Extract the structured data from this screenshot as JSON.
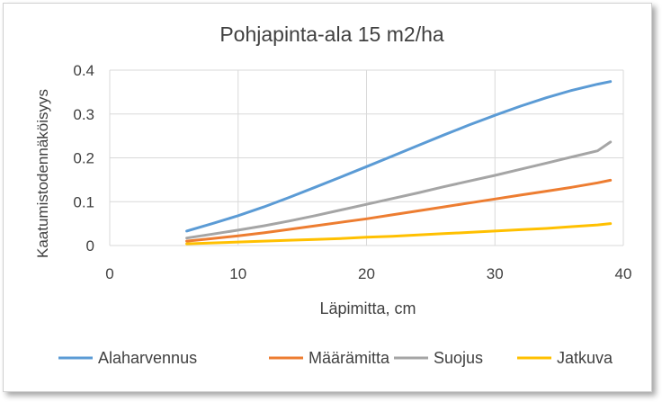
{
  "chart_data": {
    "type": "line",
    "title": "Pohjapinta-ala 15 m2/ha",
    "xlabel": "Läpimitta, cm",
    "ylabel": "Kaatumistodennäköisyys",
    "xlim": [
      0,
      40
    ],
    "ylim": [
      0,
      0.4
    ],
    "xticks": [
      0,
      10,
      20,
      30,
      40
    ],
    "yticks": [
      0,
      0.1,
      0.2,
      0.3,
      0.4
    ],
    "xtick_labels": [
      "0",
      "10",
      "20",
      "30",
      "40"
    ],
    "ytick_labels": [
      "0",
      "0.1",
      "0.2",
      "0.3",
      "0.4"
    ],
    "grid": true,
    "legend_position": "bottom",
    "x": [
      6,
      8,
      10,
      12,
      14,
      16,
      18,
      20,
      22,
      24,
      26,
      28,
      30,
      32,
      34,
      36,
      38,
      39
    ],
    "series": [
      {
        "name": "Alaharvennus",
        "color": "#5b9bd5",
        "values": [
          0.033,
          0.05,
          0.068,
          0.088,
          0.11,
          0.133,
          0.156,
          0.18,
          0.204,
          0.228,
          0.252,
          0.275,
          0.297,
          0.318,
          0.337,
          0.354,
          0.368,
          0.374
        ]
      },
      {
        "name": "Määrämitta",
        "color": "#ed7d31",
        "values": [
          0.01,
          0.016,
          0.022,
          0.029,
          0.037,
          0.045,
          0.053,
          0.061,
          0.07,
          0.079,
          0.088,
          0.097,
          0.106,
          0.115,
          0.124,
          0.133,
          0.143,
          0.149
        ]
      },
      {
        "name": "Suojus",
        "color": "#a5a5a5",
        "values": [
          0.017,
          0.026,
          0.035,
          0.045,
          0.056,
          0.068,
          0.081,
          0.094,
          0.107,
          0.12,
          0.134,
          0.147,
          0.16,
          0.174,
          0.188,
          0.202,
          0.216,
          0.236
        ]
      },
      {
        "name": "Jatkuva",
        "color": "#ffc000",
        "values": [
          0.004,
          0.006,
          0.008,
          0.01,
          0.012,
          0.014,
          0.016,
          0.019,
          0.021,
          0.024,
          0.027,
          0.03,
          0.033,
          0.036,
          0.039,
          0.043,
          0.047,
          0.05
        ]
      }
    ]
  }
}
